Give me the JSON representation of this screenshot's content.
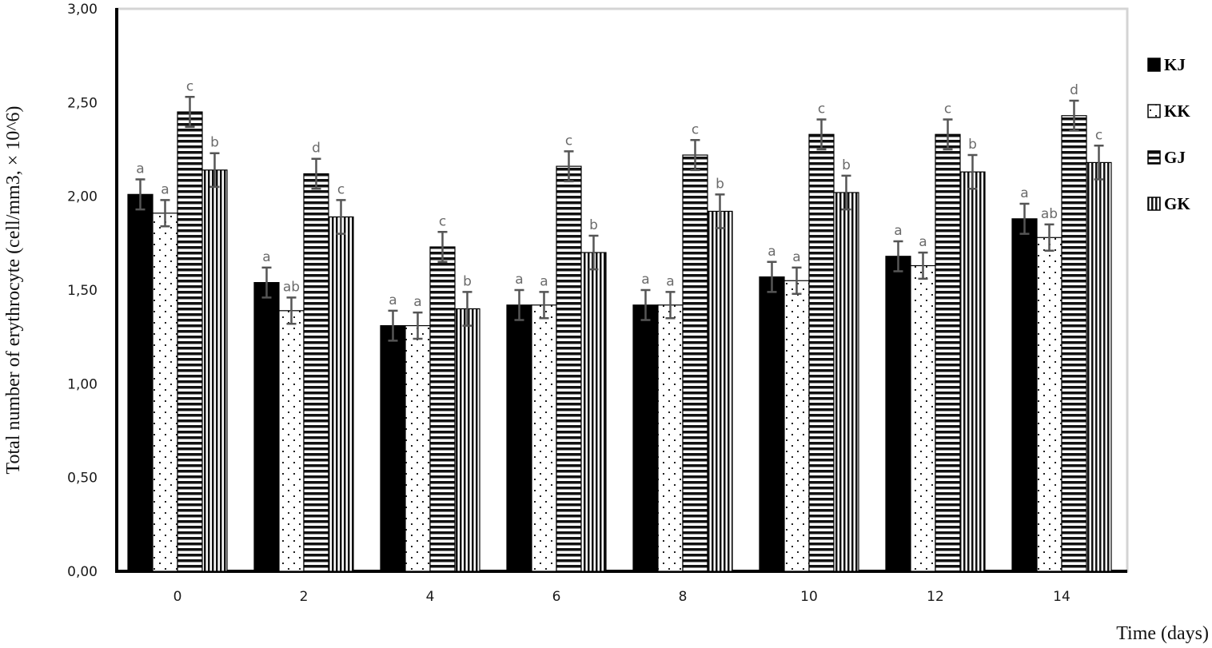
{
  "chart_data": {
    "type": "bar",
    "title": "",
    "xlabel": "Time (days)",
    "ylabel": "Total number of erythrocyte (cell/mm3, × 10^6)",
    "ylim": [
      0,
      3
    ],
    "yticks": [
      "0,00",
      "0,50",
      "1,00",
      "1,50",
      "2,00",
      "2,50",
      "3,00"
    ],
    "categories": [
      "0",
      "2",
      "4",
      "6",
      "8",
      "10",
      "12",
      "14"
    ],
    "legend_position": "right",
    "grid": false,
    "series": [
      {
        "name": "KJ",
        "pattern": "solid",
        "values": [
          2.01,
          1.54,
          1.31,
          1.42,
          1.42,
          1.57,
          1.68,
          1.88
        ],
        "errors": [
          0.08,
          0.08,
          0.08,
          0.08,
          0.08,
          0.08,
          0.08,
          0.08
        ],
        "labels": [
          "a",
          "a",
          "a",
          "a",
          "a",
          "a",
          "a",
          "a"
        ]
      },
      {
        "name": "KK",
        "pattern": "dots",
        "values": [
          1.91,
          1.39,
          1.31,
          1.42,
          1.42,
          1.55,
          1.63,
          1.78
        ],
        "errors": [
          0.07,
          0.07,
          0.07,
          0.07,
          0.07,
          0.07,
          0.07,
          0.07
        ],
        "labels": [
          "a",
          "ab",
          "a",
          "a",
          "a",
          "a",
          "a",
          "ab"
        ]
      },
      {
        "name": "GJ",
        "pattern": "horizontal",
        "values": [
          2.45,
          2.12,
          1.73,
          2.16,
          2.22,
          2.33,
          2.33,
          2.43
        ],
        "errors": [
          0.08,
          0.08,
          0.08,
          0.08,
          0.08,
          0.08,
          0.08,
          0.08
        ],
        "labels": [
          "c",
          "d",
          "c",
          "c",
          "c",
          "c",
          "c",
          "d"
        ]
      },
      {
        "name": "GK",
        "pattern": "vertical",
        "values": [
          2.14,
          1.89,
          1.4,
          1.7,
          1.92,
          2.02,
          2.13,
          2.18
        ],
        "errors": [
          0.09,
          0.09,
          0.09,
          0.09,
          0.09,
          0.09,
          0.09,
          0.09
        ],
        "labels": [
          "b",
          "c",
          "b",
          "b",
          "b",
          "b",
          "b",
          "c"
        ]
      }
    ]
  }
}
